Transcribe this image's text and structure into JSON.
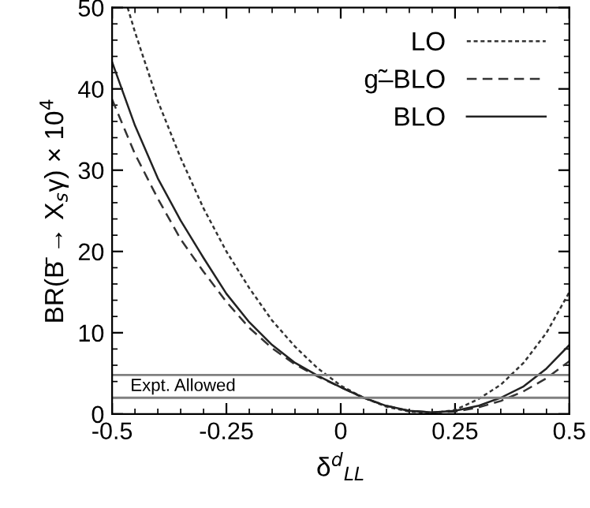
{
  "chart_data": {
    "type": "line",
    "xlabel": "δ$^{d}$$_{LL}$",
    "ylabel": "BR(B̄ → X$_{s}$γ) × 10$^{4}$",
    "x": [
      -0.5,
      -0.45,
      -0.4,
      -0.35,
      -0.3,
      -0.25,
      -0.2,
      -0.15,
      -0.1,
      -0.05,
      0,
      0.05,
      0.1,
      0.15,
      0.2,
      0.25,
      0.3,
      0.35,
      0.4,
      0.45,
      0.5
    ],
    "series": [
      {
        "name": "LO",
        "color": "#333333",
        "line_style": "dotted",
        "x": [
          -0.466,
          -0.45,
          -0.4,
          -0.35,
          -0.3,
          -0.25,
          -0.2,
          -0.15,
          -0.1,
          -0.05,
          0,
          0.05,
          0.1,
          0.15,
          0.2,
          0.25,
          0.3,
          0.35,
          0.4,
          0.45,
          0.5
        ],
        "values": [
          50,
          47,
          38.5,
          31.5,
          25.3,
          20,
          15.5,
          11.5,
          8.3,
          5.6,
          3.5,
          2.0,
          0.9,
          0.3,
          0.1,
          0.5,
          1.8,
          3.6,
          6.3,
          10,
          15
        ]
      },
      {
        "name": "g̃–BLO",
        "color": "#333333",
        "line_style": "dashed",
        "values": [
          38.7,
          32,
          26.5,
          21.5,
          17.5,
          13.8,
          10.6,
          8.1,
          6.1,
          4.6,
          3.3,
          2.0,
          1.0,
          0.4,
          0.2,
          0.3,
          0.8,
          1.6,
          2.8,
          4.4,
          6.5
        ]
      },
      {
        "name": "BLO",
        "color": "#222222",
        "line_style": "solid",
        "values": [
          43.3,
          35.5,
          29,
          23.8,
          19.2,
          14.8,
          11.3,
          8.5,
          6.3,
          4.7,
          3.3,
          2.0,
          1.0,
          0.4,
          0.2,
          0.4,
          1.0,
          2.0,
          3.4,
          5.6,
          8.5
        ]
      }
    ],
    "ref_lines": [
      {
        "axis": "y",
        "value": 4.8,
        "label": "Expt. Allowed",
        "color": "#808080"
      },
      {
        "axis": "y",
        "value": 2.0,
        "color": "#808080"
      }
    ],
    "xlim": [
      -0.5,
      0.5
    ],
    "xticks": [
      -0.5,
      -0.25,
      0,
      0.25,
      0.5
    ],
    "ylim": [
      0,
      50
    ],
    "yticks": [
      0,
      10,
      20,
      30,
      40,
      50
    ],
    "grid": false,
    "legend": "top right",
    "marker": "none"
  }
}
